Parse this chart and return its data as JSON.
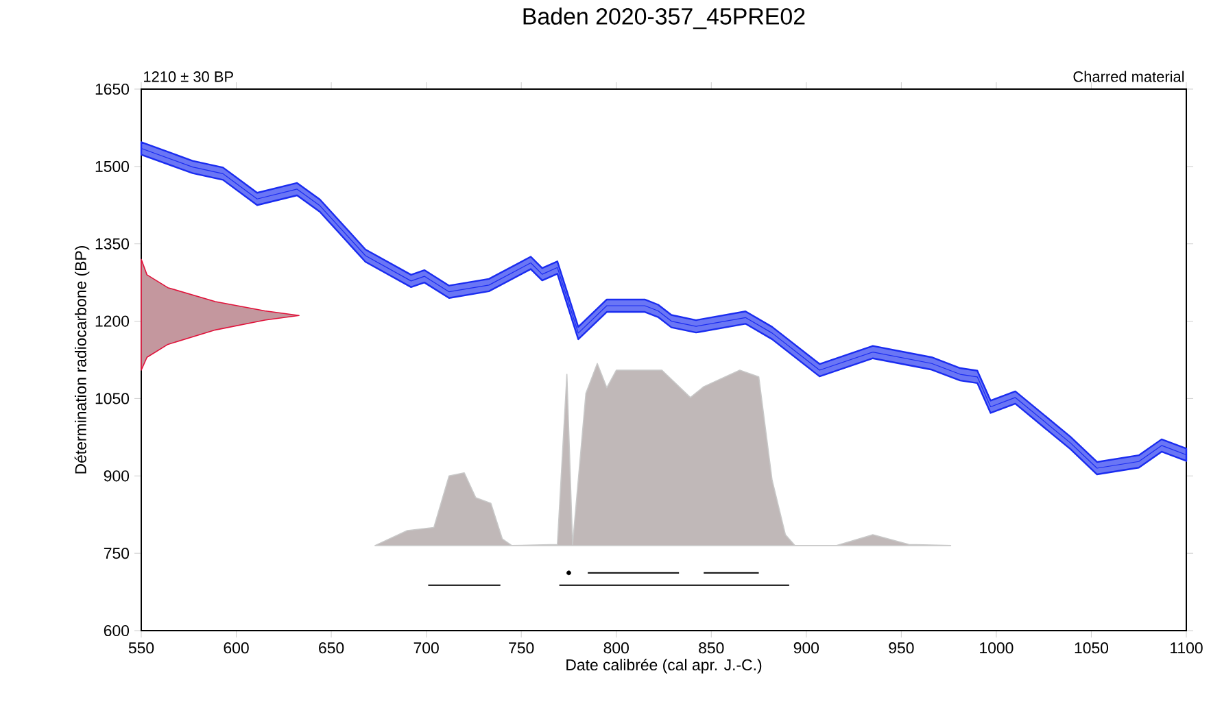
{
  "chart_data": {
    "type": "line",
    "title": "Baden 2020-357_45PRE02",
    "annotations": [
      "1210 ± 30 BP",
      "Charred material"
    ],
    "xlabel": "Date calibrée (cal apr. J.-C.)",
    "ylabel": "Détermination radiocarbone (BP)",
    "xlim": [
      550,
      1100
    ],
    "xticks": [
      550,
      600,
      650,
      700,
      750,
      800,
      850,
      900,
      950,
      1000,
      1050,
      1100
    ],
    "ylim": [
      600,
      1650
    ],
    "yticks": [
      600,
      750,
      900,
      1050,
      1200,
      1350,
      1500,
      1650
    ],
    "series": [
      {
        "type": "area",
        "color": "#c8c8c8",
        "x": [
          673,
          690,
          704,
          712,
          720,
          726,
          734,
          740,
          745,
          769,
          774,
          777,
          784,
          790,
          795,
          800,
          824,
          839,
          846,
          865,
          875,
          882,
          889,
          894,
          916,
          935,
          954,
          976
        ],
        "values": [
          765,
          794,
          800,
          900,
          906,
          858,
          847,
          778,
          765,
          767,
          1097,
          767,
          1060,
          1118,
          1071,
          1105,
          1105,
          1052,
          1073,
          1105,
          1092,
          892,
          786,
          765,
          765,
          786,
          767,
          765
        ]
      },
      {
        "type": "area",
        "color": "#e0123a",
        "x": [
          550,
          553,
          564,
          589,
          615,
          633,
          615,
          589,
          564,
          553,
          550
        ],
        "values": [
          1320,
          1290,
          1265,
          1238,
          1220,
          1211,
          1202,
          1183,
          1155,
          1130,
          1105
        ]
      },
      {
        "color": "#1a2cf0",
        "x": [
          550,
          577,
          593,
          611,
          632,
          644,
          668,
          692,
          699,
          712,
          733,
          755,
          761,
          769,
          780,
          795,
          815,
          822,
          829,
          842,
          868,
          882,
          907,
          935,
          966,
          981,
          990,
          997,
          1010,
          1039,
          1053,
          1075,
          1087,
          1100
        ],
        "values": [
          1535,
          1499,
          1486,
          1437,
          1456,
          1424,
          1327,
          1278,
          1287,
          1257,
          1270,
          1313,
          1291,
          1304,
          1177,
          1230,
          1230,
          1220,
          1200,
          1190,
          1207,
          1177,
          1105,
          1140,
          1118,
          1097,
          1092,
          1034,
          1052,
          964,
          915,
          928,
          959,
          941
        ],
        "lower": [
          1523,
          1487,
          1474,
          1425,
          1444,
          1412,
          1315,
          1266,
          1275,
          1245,
          1258,
          1301,
          1279,
          1292,
          1165,
          1218,
          1218,
          1208,
          1188,
          1178,
          1195,
          1165,
          1093,
          1128,
          1106,
          1085,
          1080,
          1022,
          1040,
          952,
          903,
          916,
          947,
          929
        ],
        "upper": [
          1547,
          1511,
          1498,
          1449,
          1468,
          1436,
          1339,
          1290,
          1299,
          1269,
          1282,
          1325,
          1303,
          1316,
          1189,
          1242,
          1242,
          1232,
          1212,
          1202,
          1219,
          1189,
          1117,
          1152,
          1130,
          1109,
          1104,
          1046,
          1064,
          976,
          927,
          940,
          971,
          953
        ]
      },
      {
        "type": "line",
        "color": "#000000",
        "x": [
          785,
          833,
          null,
          846,
          875
        ],
        "values": [
          712,
          712,
          null,
          712,
          712
        ]
      },
      {
        "type": "line",
        "color": "#000000",
        "x": [
          701,
          739,
          null,
          770,
          891
        ],
        "values": [
          688,
          688,
          null,
          688,
          688
        ]
      },
      {
        "type": "scatter",
        "color": "#000000",
        "x": [
          775
        ],
        "values": [
          712
        ]
      }
    ]
  }
}
